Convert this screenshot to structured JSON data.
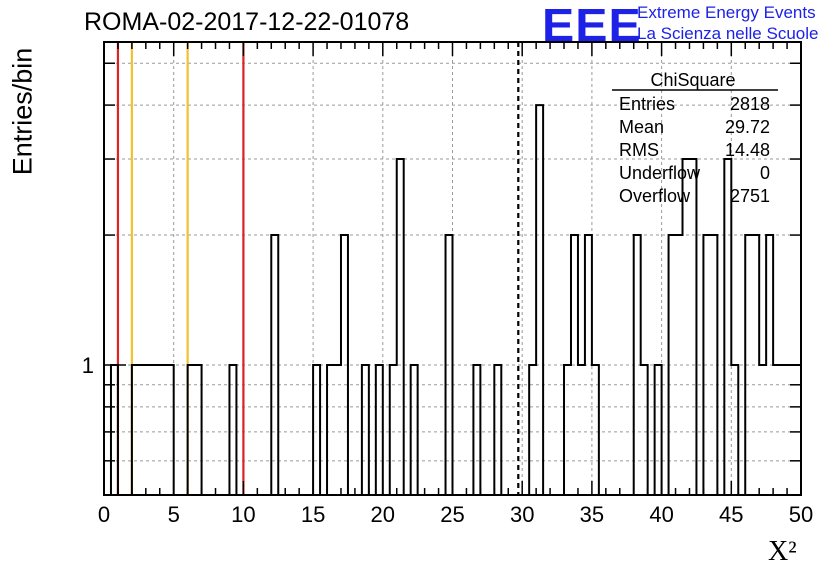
{
  "chart_data": {
    "type": "bar",
    "title": "ROMA-02-2017-12-22-01078",
    "xlabel": "X²",
    "ylabel": "Entries/bin",
    "xlim": [
      0,
      50
    ],
    "ylog": true,
    "ylim": [
      0.5,
      5.6
    ],
    "grid": true,
    "bin_width": 0.5,
    "x_ticks": [
      0,
      5,
      10,
      15,
      20,
      25,
      30,
      35,
      40,
      45,
      50
    ],
    "y_tick_labels": [
      {
        "value": 1,
        "label": "1"
      }
    ],
    "bins": [
      {
        "x": 0.5,
        "count": 1
      },
      {
        "x": 2.0,
        "count": 1
      },
      {
        "x": 2.5,
        "count": 1
      },
      {
        "x": 3.0,
        "count": 1
      },
      {
        "x": 3.5,
        "count": 1
      },
      {
        "x": 4.0,
        "count": 1
      },
      {
        "x": 4.5,
        "count": 1
      },
      {
        "x": 6.0,
        "count": 1
      },
      {
        "x": 6.5,
        "count": 1
      },
      {
        "x": 9.0,
        "count": 1
      },
      {
        "x": 12.0,
        "count": 2
      },
      {
        "x": 15.0,
        "count": 1
      },
      {
        "x": 16.0,
        "count": 1
      },
      {
        "x": 16.5,
        "count": 1
      },
      {
        "x": 17.0,
        "count": 2
      },
      {
        "x": 18.5,
        "count": 1
      },
      {
        "x": 19.5,
        "count": 1
      },
      {
        "x": 20.5,
        "count": 1
      },
      {
        "x": 21.0,
        "count": 3
      },
      {
        "x": 22.0,
        "count": 1
      },
      {
        "x": 24.5,
        "count": 2
      },
      {
        "x": 26.5,
        "count": 1
      },
      {
        "x": 28.0,
        "count": 1
      },
      {
        "x": 30.5,
        "count": 1
      },
      {
        "x": 31.0,
        "count": 4
      },
      {
        "x": 33.0,
        "count": 1
      },
      {
        "x": 33.5,
        "count": 2
      },
      {
        "x": 34.0,
        "count": 1
      },
      {
        "x": 34.5,
        "count": 2
      },
      {
        "x": 35.0,
        "count": 1
      },
      {
        "x": 38.0,
        "count": 2
      },
      {
        "x": 38.5,
        "count": 1
      },
      {
        "x": 39.5,
        "count": 1
      },
      {
        "x": 40.5,
        "count": 2
      },
      {
        "x": 41.0,
        "count": 2
      },
      {
        "x": 41.5,
        "count": 3
      },
      {
        "x": 42.0,
        "count": 3
      },
      {
        "x": 43.0,
        "count": 2
      },
      {
        "x": 43.5,
        "count": 2
      },
      {
        "x": 44.5,
        "count": 3
      },
      {
        "x": 45.0,
        "count": 1
      },
      {
        "x": 46.0,
        "count": 2
      },
      {
        "x": 46.5,
        "count": 2
      },
      {
        "x": 47.0,
        "count": 1
      },
      {
        "x": 47.5,
        "count": 2
      },
      {
        "x": 48.0,
        "count": 1
      },
      {
        "x": 48.5,
        "count": 1
      },
      {
        "x": 49.0,
        "count": 1
      },
      {
        "x": 49.5,
        "count": 1
      }
    ],
    "reference_lines": [
      {
        "x": 1.0,
        "color": "#dd2222",
        "style": "solid"
      },
      {
        "x": 2.0,
        "color": "#f2c12e",
        "style": "solid"
      },
      {
        "x": 6.0,
        "color": "#f2c12e",
        "style": "solid"
      },
      {
        "x": 10.0,
        "color": "#dd2222",
        "style": "solid"
      },
      {
        "x": 29.72,
        "color": "#000000",
        "style": "dashed"
      }
    ],
    "stats_box": {
      "title": "ChiSquare",
      "rows": [
        {
          "label": "Entries",
          "value": "2818"
        },
        {
          "label": "Mean",
          "value": "29.72"
        },
        {
          "label": "RMS",
          "value": "14.48"
        },
        {
          "label": "Underflow",
          "value": "0"
        },
        {
          "label": "Overflow",
          "value": "2751"
        }
      ]
    }
  },
  "logo": {
    "mark": "EEE",
    "line1": "Extreme Energy Events",
    "line2": "La Scienza nelle Scuole",
    "color": "#1d22e6"
  }
}
